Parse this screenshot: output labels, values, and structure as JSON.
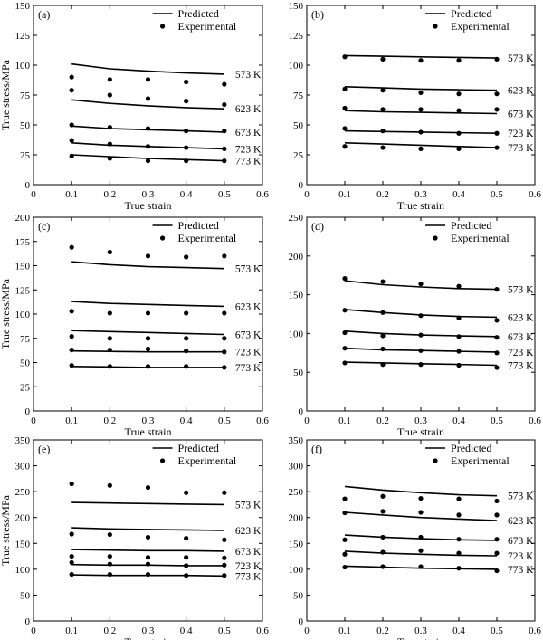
{
  "legend": {
    "predicted": "Predicted",
    "experimental": "Experimental"
  },
  "chart_data": [
    {
      "type": "line",
      "panel_label": "(a)",
      "xlabel": "True strain",
      "ylabel": "True stress/MPa",
      "xlim": [
        0,
        0.6
      ],
      "ylim": [
        0,
        150
      ],
      "xticks": [
        "0",
        "0.1",
        "0.2",
        "0.3",
        "0.4",
        "0.5",
        "0.6"
      ],
      "yticks": [
        "0",
        "25",
        "50",
        "75",
        "100",
        "125",
        "150"
      ],
      "x": [
        0.1,
        0.2,
        0.3,
        0.4,
        0.5
      ],
      "series": [
        {
          "name": "573 K",
          "predicted": [
            101,
            97,
            95,
            93.5,
            92.5
          ],
          "experimental": [
            90,
            88,
            88,
            86,
            84
          ]
        },
        {
          "name": "623 K",
          "predicted": [
            71,
            68,
            66,
            64.5,
            63.5
          ],
          "experimental": [
            79,
            75,
            72,
            70,
            67
          ]
        },
        {
          "name": "673 K",
          "predicted": [
            49,
            47,
            46,
            45,
            44
          ],
          "experimental": [
            50,
            48,
            47,
            45,
            45
          ]
        },
        {
          "name": "723 K",
          "predicted": [
            35,
            33,
            32,
            31,
            30
          ],
          "experimental": [
            37,
            34,
            32,
            31,
            30
          ]
        },
        {
          "name": "773 K",
          "predicted": [
            25,
            23.5,
            22,
            21,
            20
          ],
          "experimental": [
            24,
            22,
            20,
            20,
            20
          ]
        }
      ]
    },
    {
      "type": "line",
      "panel_label": "(b)",
      "xlabel": "True strain",
      "ylabel": "",
      "xlim": [
        0,
        0.6
      ],
      "ylim": [
        0,
        150
      ],
      "xticks": [
        "0",
        "0.1",
        "0.2",
        "0.3",
        "0.4",
        "0.5",
        "0.6"
      ],
      "yticks": [
        "0",
        "25",
        "50",
        "75",
        "100",
        "125",
        "150"
      ],
      "x": [
        0.1,
        0.2,
        0.3,
        0.4,
        0.5
      ],
      "series": [
        {
          "name": "573 K",
          "predicted": [
            108,
            107.5,
            107,
            106.5,
            106
          ],
          "experimental": [
            107,
            105,
            104,
            104,
            105
          ]
        },
        {
          "name": "623 K",
          "predicted": [
            82,
            81,
            80,
            79.5,
            79
          ],
          "experimental": [
            80,
            79,
            77,
            76,
            76
          ]
        },
        {
          "name": "673 K",
          "predicted": [
            62,
            61,
            60.5,
            60,
            59.5
          ],
          "experimental": [
            64,
            63,
            63,
            62,
            63
          ]
        },
        {
          "name": "723 K",
          "predicted": [
            45,
            44.5,
            44,
            43.5,
            43
          ],
          "experimental": [
            47,
            45,
            44,
            43,
            43
          ]
        },
        {
          "name": "773 K",
          "predicted": [
            35,
            34,
            33,
            32,
            31
          ],
          "experimental": [
            32,
            31,
            30,
            30,
            31
          ]
        }
      ]
    },
    {
      "type": "line",
      "panel_label": "(c)",
      "xlabel": "True strain",
      "ylabel": "True stress/MPa",
      "xlim": [
        0,
        0.6
      ],
      "ylim": [
        0,
        200
      ],
      "xticks": [
        "0",
        "0.1",
        "0.2",
        "0.3",
        "0.4",
        "0.5",
        "0.6"
      ],
      "yticks": [
        "0",
        "25",
        "50",
        "75",
        "100",
        "125",
        "150",
        "175",
        "200"
      ],
      "x": [
        0.1,
        0.2,
        0.3,
        0.4,
        0.5
      ],
      "series": [
        {
          "name": "573 K",
          "predicted": [
            154,
            151,
            149,
            148,
            147
          ],
          "experimental": [
            169,
            164,
            160,
            159,
            160
          ]
        },
        {
          "name": "623 K",
          "predicted": [
            113,
            111,
            110,
            109,
            108
          ],
          "experimental": [
            103,
            101,
            101,
            101,
            101
          ]
        },
        {
          "name": "673 K",
          "predicted": [
            83,
            82,
            81,
            80,
            79
          ],
          "experimental": [
            77,
            75,
            75,
            75,
            75
          ]
        },
        {
          "name": "723 K",
          "predicted": [
            62,
            61.5,
            61,
            61,
            61
          ],
          "experimental": [
            63,
            63,
            64,
            62,
            61
          ]
        },
        {
          "name": "773 K",
          "predicted": [
            46,
            45.5,
            45,
            45,
            45
          ],
          "experimental": [
            47,
            46,
            46,
            46,
            45
          ]
        }
      ]
    },
    {
      "type": "line",
      "panel_label": "(d)",
      "xlabel": "True strain",
      "ylabel": "",
      "xlim": [
        0,
        0.6
      ],
      "ylim": [
        0,
        250
      ],
      "xticks": [
        "0",
        "0.1",
        "0.2",
        "0.3",
        "0.4",
        "0.5",
        "0.6"
      ],
      "yticks": [
        "0",
        "50",
        "100",
        "150",
        "200",
        "250"
      ],
      "x": [
        0.1,
        0.2,
        0.3,
        0.4,
        0.5
      ],
      "series": [
        {
          "name": "573 K",
          "predicted": [
            168,
            163,
            160,
            158,
            157
          ],
          "experimental": [
            171,
            167,
            164,
            161,
            157
          ]
        },
        {
          "name": "623 K",
          "predicted": [
            131,
            127,
            124,
            122,
            121
          ],
          "experimental": [
            130,
            127,
            123,
            120,
            117
          ]
        },
        {
          "name": "673 K",
          "predicted": [
            103,
            100,
            98,
            97,
            96
          ],
          "experimental": [
            101,
            97,
            98,
            96,
            95
          ]
        },
        {
          "name": "723 K",
          "predicted": [
            81,
            79,
            78,
            77,
            76
          ],
          "experimental": [
            81,
            80,
            78,
            77,
            75
          ]
        },
        {
          "name": "773 K",
          "predicted": [
            63,
            62,
            61,
            60,
            59
          ],
          "experimental": [
            62,
            60,
            60,
            59,
            56
          ]
        }
      ]
    },
    {
      "type": "line",
      "panel_label": "(e)",
      "xlabel": "True strain",
      "ylabel": "True stress/MPa",
      "xlim": [
        0,
        0.6
      ],
      "ylim": [
        0,
        350
      ],
      "xticks": [
        "0",
        "0.1",
        "0.2",
        "0.3",
        "0.4",
        "0.5",
        "0.6"
      ],
      "yticks": [
        "0",
        "50",
        "100",
        "150",
        "200",
        "250",
        "300",
        "350"
      ],
      "x": [
        0.1,
        0.2,
        0.3,
        0.4,
        0.5
      ],
      "series": [
        {
          "name": "573 K",
          "predicted": [
            229,
            228,
            227,
            226,
            225
          ],
          "experimental": [
            265,
            262,
            258,
            248,
            248
          ]
        },
        {
          "name": "623 K",
          "predicted": [
            180,
            178,
            177,
            176,
            175
          ],
          "experimental": [
            168,
            167,
            162,
            160,
            157
          ]
        },
        {
          "name": "673 K",
          "predicted": [
            138,
            137,
            136,
            136,
            135
          ],
          "experimental": [
            125,
            125,
            123,
            123,
            122
          ]
        },
        {
          "name": "723 K",
          "predicted": [
            109,
            108,
            108,
            107,
            107
          ],
          "experimental": [
            113,
            110,
            110,
            107,
            108
          ]
        },
        {
          "name": "773 K",
          "predicted": [
            89,
            88,
            88,
            88,
            87
          ],
          "experimental": [
            90,
            90,
            90,
            88,
            88
          ]
        }
      ]
    },
    {
      "type": "line",
      "panel_label": "(f)",
      "xlabel": "True strain",
      "ylabel": "",
      "xlim": [
        0,
        0.6
      ],
      "ylim": [
        0,
        350
      ],
      "xticks": [
        "0",
        "0.1",
        "0.2",
        "0.3",
        "0.4",
        "0.5",
        "0.6"
      ],
      "yticks": [
        "0",
        "50",
        "100",
        "150",
        "200",
        "250",
        "300",
        "350"
      ],
      "x": [
        0.1,
        0.2,
        0.3,
        0.4,
        0.5
      ],
      "series": [
        {
          "name": "573 K",
          "predicted": [
            260,
            253,
            248,
            244,
            242
          ],
          "experimental": [
            236,
            241,
            237,
            236,
            232
          ]
        },
        {
          "name": "623 K",
          "predicted": [
            210,
            205,
            200,
            197,
            194
          ],
          "experimental": [
            209,
            212,
            210,
            205,
            205
          ]
        },
        {
          "name": "673 K",
          "predicted": [
            166,
            162,
            159,
            157,
            156
          ],
          "experimental": [
            157,
            162,
            162,
            158,
            158
          ]
        },
        {
          "name": "723 K",
          "predicted": [
            135,
            131,
            129,
            127,
            126
          ],
          "experimental": [
            129,
            133,
            136,
            131,
            131
          ]
        },
        {
          "name": "773 K",
          "predicted": [
            106,
            104,
            102,
            101,
            100
          ],
          "experimental": [
            104,
            105,
            105,
            102,
            97
          ]
        }
      ]
    }
  ]
}
